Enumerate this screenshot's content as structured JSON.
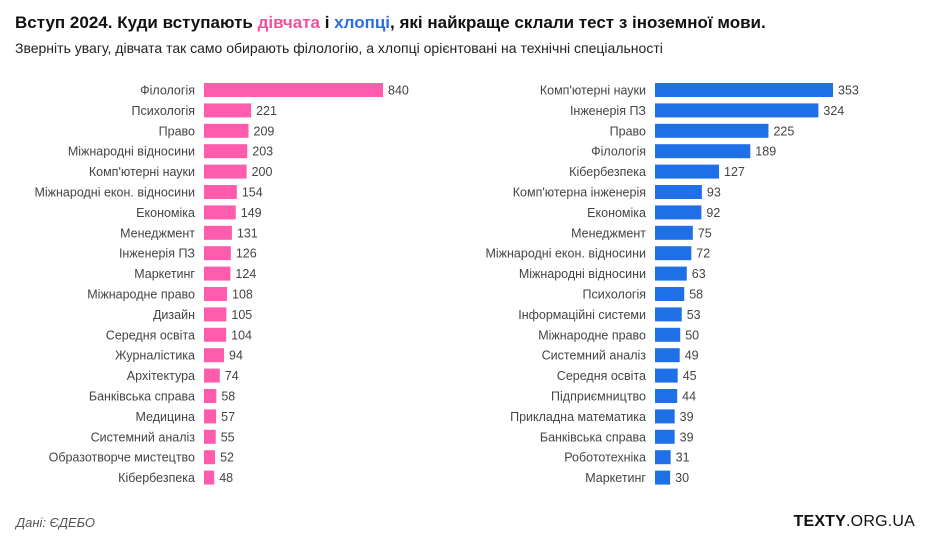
{
  "header": {
    "title_part1": "Вступ 2024. Куди вступають ",
    "title_girls": "дівчата",
    "title_part2": " і ",
    "title_boys": "хлопці",
    "title_part3": ", які найкраще склали тест з іноземної мови.",
    "subtitle": "Зверніть увагу, дівчата так само обирають філологію, а хлопці орієнтовані на технічні спеціальності"
  },
  "footer": {
    "source": "Дані: ЄДЕБО",
    "logo_bold": "TEXTY",
    "logo_rest": ".ORG.UA"
  },
  "colors": {
    "girls": "#ff5cae",
    "boys": "#1f6fe6"
  },
  "chart_data": [
    {
      "type": "bar",
      "orientation": "horizontal",
      "series_color": "#ff5cae",
      "categories": [
        "Філологія",
        "Психологія",
        "Право",
        "Міжнародні відносини",
        "Комп'ютерні науки",
        "Міжнародні екон. відносини",
        "Економіка",
        "Менеджмент",
        "Інженерія ПЗ",
        "Маркетинг",
        "Міжнародне право",
        "Дизайн",
        "Середня освіта",
        "Журналістика",
        "Архітектура",
        "Банківська справа",
        "Медицина",
        "Системний аналіз",
        "Образотворче мистецтво",
        "Кібербезпека"
      ],
      "values": [
        840,
        221,
        209,
        203,
        200,
        154,
        149,
        131,
        126,
        124,
        108,
        105,
        104,
        94,
        74,
        58,
        57,
        55,
        52,
        48
      ]
    },
    {
      "type": "bar",
      "orientation": "horizontal",
      "series_color": "#1f6fe6",
      "categories": [
        "Комп'ютерні науки",
        "Інженерія ПЗ",
        "Право",
        "Філологія",
        "Кібербезпека",
        "Комп'ютерна інженерія",
        "Економіка",
        "Менеджмент",
        "Міжнародні екон. відносини",
        "Міжнародні відносини",
        "Психологія",
        "Інформаційні системи",
        "Міжнародне право",
        "Системний аналіз",
        "Середня освіта",
        "Підприємництво",
        "Прикладна математика",
        "Банківська справа",
        "Робототехніка",
        "Маркетинг"
      ],
      "values": [
        353,
        324,
        225,
        189,
        127,
        93,
        92,
        75,
        72,
        63,
        58,
        53,
        50,
        49,
        45,
        44,
        39,
        39,
        31,
        30
      ]
    }
  ]
}
